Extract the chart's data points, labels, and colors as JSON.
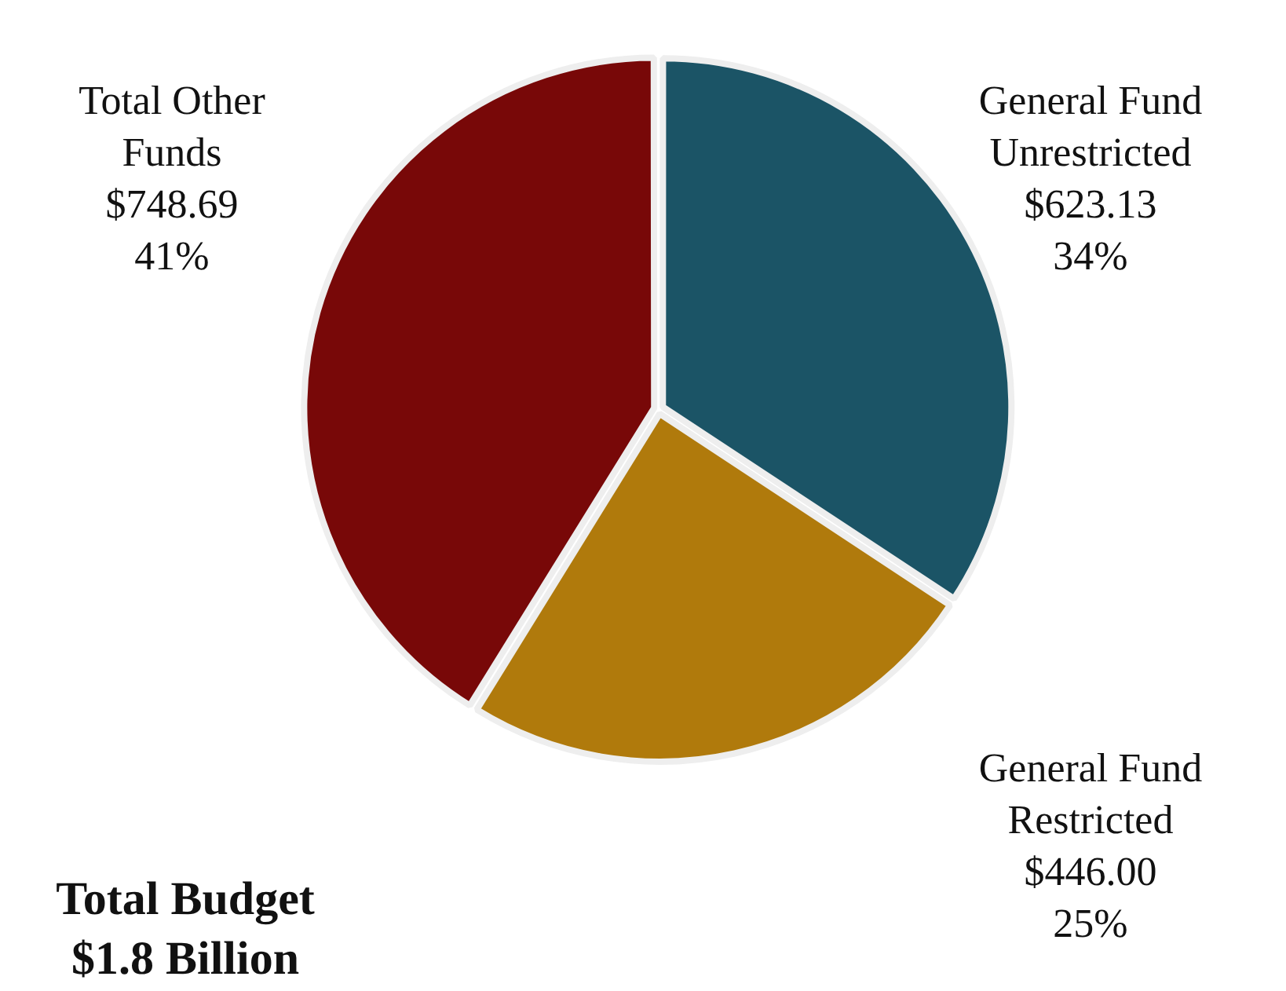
{
  "chart_data": {
    "type": "pie",
    "categories": [
      "General Fund Unrestricted",
      "General Fund Restricted",
      "Total Other Funds"
    ],
    "values": [
      623.13,
      446.0,
      748.69
    ],
    "value_labels": [
      "$623.13\n34%",
      "$446.00\n25%",
      "$748.69\n41%"
    ],
    "colors": [
      "#1b5466",
      "#b07a0c",
      "#780808"
    ],
    "legend": false,
    "annotations": [
      "Total Budget\n$1.8 Billion"
    ]
  }
}
